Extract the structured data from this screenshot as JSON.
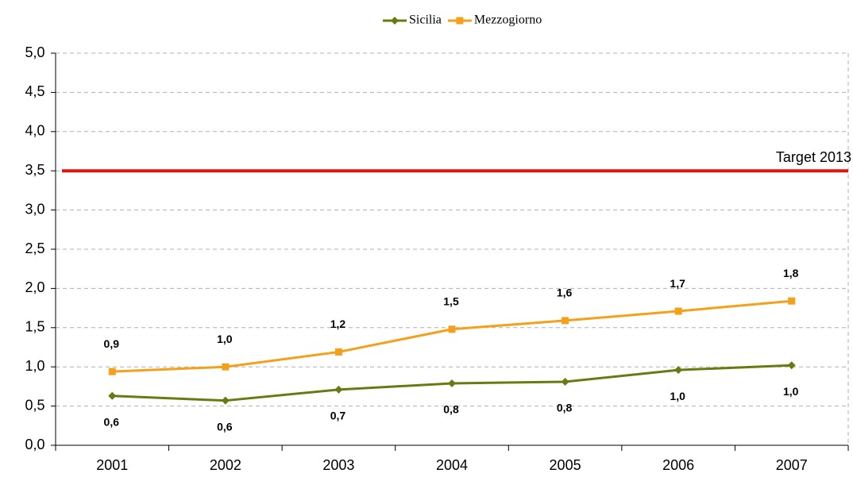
{
  "chart_data": {
    "type": "line",
    "categories": [
      "2001",
      "2002",
      "2003",
      "2004",
      "2005",
      "2006",
      "2007"
    ],
    "series": [
      {
        "name": "Sicilia",
        "color": "#6b7a10",
        "marker": "diamond",
        "values": [
          0.63,
          0.57,
          0.71,
          0.79,
          0.81,
          0.96,
          1.02
        ],
        "value_labels": [
          "0,6",
          "0,6",
          "0,7",
          "0,8",
          "0,8",
          "1,0",
          "1,0"
        ]
      },
      {
        "name": "Mezzogiorno",
        "color": "#f5a01a",
        "marker": "square",
        "values": [
          0.94,
          1.0,
          1.19,
          1.48,
          1.59,
          1.71,
          1.84
        ],
        "value_labels": [
          "0,9",
          "1,0",
          "1,2",
          "1,5",
          "1,6",
          "1,7",
          "1,8"
        ]
      }
    ],
    "target": {
      "value": 3.5,
      "label": "Target 2013",
      "color": "#e8120c"
    },
    "ylim": [
      0,
      5
    ],
    "yticks": [
      {
        "value": 0,
        "label": "0,0"
      },
      {
        "value": 0.5,
        "label": "0,5"
      },
      {
        "value": 1,
        "label": "1,0"
      },
      {
        "value": 1.5,
        "label": "1,5"
      },
      {
        "value": 2,
        "label": "2,0"
      },
      {
        "value": 2.5,
        "label": "2,5"
      },
      {
        "value": 3,
        "label": "3,0"
      },
      {
        "value": 3.5,
        "label": "3,5"
      },
      {
        "value": 4,
        "label": "4,0"
      },
      {
        "value": 4.5,
        "label": "4,5"
      },
      {
        "value": 5,
        "label": "5,0"
      }
    ],
    "grid": true,
    "legend": "top"
  }
}
